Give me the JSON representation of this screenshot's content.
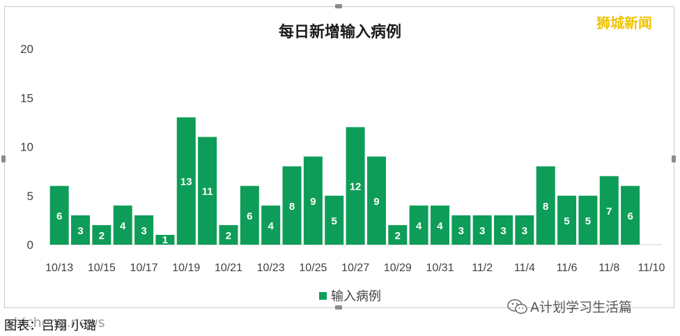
{
  "watermark": "狮城新闻",
  "caption": "图表：吕翔 小璐",
  "caption_source": "shicheng.news",
  "wechat_label": "A计划学习生活篇",
  "colors": {
    "bar": "#0e9d58",
    "label": "#ffffff",
    "axis": "#404040"
  },
  "chart_data": {
    "type": "bar",
    "title": "每日新增输入病例",
    "xlabel": "",
    "ylabel": "",
    "ylim": [
      0,
      20
    ],
    "yticks": [
      0,
      5,
      10,
      15,
      20
    ],
    "grid": false,
    "legend_position": "bottom",
    "categories": [
      "10/13",
      "10/14",
      "10/15",
      "10/16",
      "10/17",
      "10/18",
      "10/19",
      "10/20",
      "10/21",
      "10/22",
      "10/23",
      "10/24",
      "10/25",
      "10/26",
      "10/27",
      "10/28",
      "10/29",
      "10/30",
      "10/31",
      "11/1",
      "11/2",
      "11/3",
      "11/4",
      "11/5",
      "11/6",
      "11/7",
      "11/8",
      "11/9",
      "11/10"
    ],
    "xtick_labels": [
      "10/13",
      "10/15",
      "10/17",
      "10/19",
      "10/21",
      "10/23",
      "10/25",
      "10/27",
      "10/29",
      "10/31",
      "11/2",
      "11/4",
      "11/6",
      "11/8",
      "11/10"
    ],
    "series": [
      {
        "name": "输入病例",
        "values": [
          6,
          3,
          2,
          4,
          3,
          1,
          13,
          11,
          2,
          6,
          4,
          8,
          9,
          5,
          12,
          9,
          2,
          4,
          4,
          3,
          3,
          3,
          3,
          8,
          5,
          5,
          7,
          6,
          null
        ]
      }
    ]
  }
}
